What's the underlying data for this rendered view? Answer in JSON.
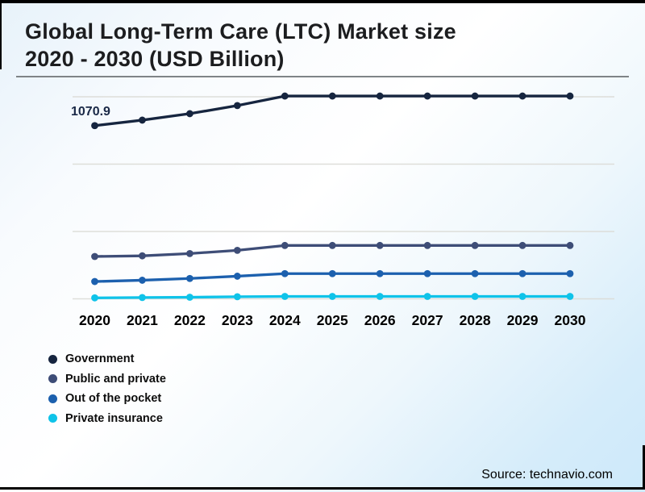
{
  "header": {
    "title_line1": "Global Long-Term Care (LTC) Market size",
    "title_line2": "2020 - 2030 (USD Billion)"
  },
  "footer": {
    "source": "Source: technavio.com"
  },
  "chart_data": {
    "type": "line",
    "title": "Global Long-Term Care (LTC) Market size 2020 - 2030 (USD Billion)",
    "categories": [
      "2020",
      "2021",
      "2022",
      "2023",
      "2024",
      "2025",
      "2026",
      "2027",
      "2028",
      "2029",
      "2030"
    ],
    "series": [
      {
        "name": "Government",
        "color": "#16253f",
        "values": [
          1070.9,
          1105,
          1145,
          1195,
          1254,
          1254,
          1254,
          1254,
          1254,
          1254,
          1254
        ]
      },
      {
        "name": "Public and private",
        "color": "#3e4d77",
        "values": [
          262,
          266,
          280,
          300,
          330,
          330,
          330,
          330,
          330,
          330,
          330
        ]
      },
      {
        "name": "Out of the pocket",
        "color": "#1c60ae",
        "values": [
          107,
          115,
          126,
          140,
          156,
          156,
          156,
          156,
          156,
          156,
          156
        ]
      },
      {
        "name": "Private insurance",
        "color": "#0fc3e9",
        "values": [
          6,
          8,
          10,
          13,
          15,
          15,
          15,
          15,
          15,
          15,
          15
        ]
      }
    ],
    "annotations": [
      {
        "text": "1070.9",
        "series": "Government",
        "x": "2020",
        "value": 1070.9
      }
    ],
    "value_labels_shown": [
      "1070.9"
    ],
    "values_estimated_from_pixels": true,
    "xlabel": "",
    "ylabel": "",
    "ylim": [
      0,
      1330
    ],
    "grid": "horizontal-faint",
    "y_axis_ticks_visible": false,
    "legend_position": "bottom-left"
  }
}
